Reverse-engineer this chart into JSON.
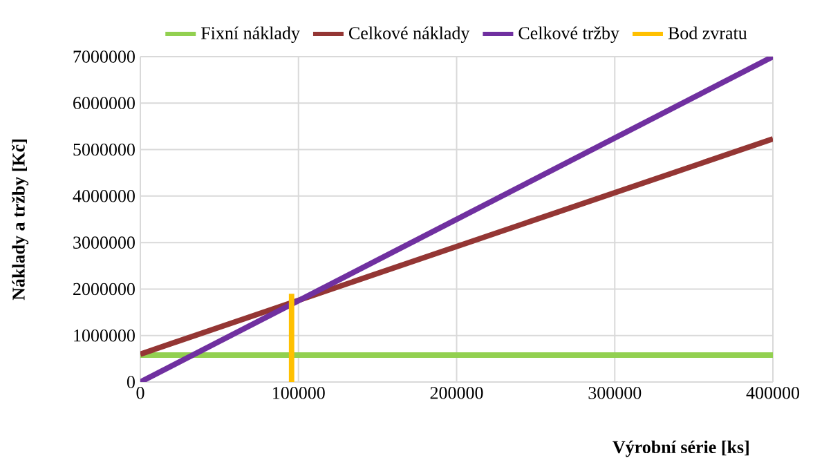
{
  "chart_data": {
    "type": "line",
    "xlabel": "Výrobní série [ks]",
    "ylabel": "Náklady a tržby [Kč]",
    "xlim": [
      0,
      400000
    ],
    "ylim": [
      0,
      7000000
    ],
    "xticks": [
      0,
      100000,
      200000,
      300000,
      400000
    ],
    "yticks": [
      0,
      1000000,
      2000000,
      3000000,
      4000000,
      5000000,
      6000000,
      7000000
    ],
    "grid": true,
    "legend": "top",
    "series": [
      {
        "name": "Fixní náklady",
        "color": "#92d050",
        "x": [
          0,
          400000
        ],
        "values": [
          580000,
          580000
        ]
      },
      {
        "name": "Celkové náklady",
        "color": "#943634",
        "x": [
          0,
          400000
        ],
        "values": [
          600000,
          5230000
        ]
      },
      {
        "name": "Celkové tržby",
        "color": "#7030a0",
        "x": [
          0,
          400000
        ],
        "values": [
          0,
          7000000
        ]
      },
      {
        "name": "Bod zvratu",
        "color": "#ffc000",
        "x": [
          95600,
          95600
        ],
        "values": [
          0,
          1900000
        ]
      }
    ]
  }
}
